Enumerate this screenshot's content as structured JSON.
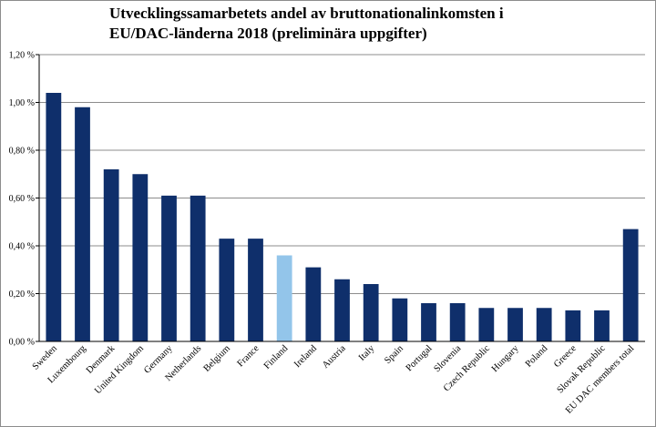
{
  "chart_data": {
    "type": "bar",
    "title_line1": "Utvecklingssamarbetets andel av bruttonationalinkomsten i",
    "title_line2": "EU/DAC-länderna 2018 (preliminära uppgifter)",
    "categories": [
      "Sweden",
      "Luxembourg",
      "Denmark",
      "United Kingdom",
      "Germany",
      "Netherlands",
      "Belgium",
      "France",
      "Finland",
      "Ireland",
      "Austria",
      "Italy",
      "Spain",
      "Portugal",
      "Slovenia",
      "Czech Republic",
      "Hungary",
      "Poland",
      "Greece",
      "Slovak Republic",
      "EU DAC members total"
    ],
    "values": [
      1.04,
      0.98,
      0.72,
      0.7,
      0.61,
      0.61,
      0.43,
      0.43,
      0.36,
      0.31,
      0.26,
      0.24,
      0.18,
      0.16,
      0.16,
      0.14,
      0.14,
      0.14,
      0.13,
      0.13,
      0.47
    ],
    "highlight": "Finland",
    "ylim": [
      0,
      1.2
    ],
    "yticks": [
      0,
      0.2,
      0.4,
      0.6,
      0.8,
      1.0,
      1.2
    ],
    "ytick_labels": [
      "0,00 %",
      "0,20 %",
      "0,40 %",
      "0,60 %",
      "0,80 %",
      "1,00 %",
      "1,20 %"
    ],
    "grid": true,
    "colors": {
      "bar": "#0f2f6b",
      "highlight": "#93c5ea",
      "grid": "#8c8c8c"
    }
  }
}
